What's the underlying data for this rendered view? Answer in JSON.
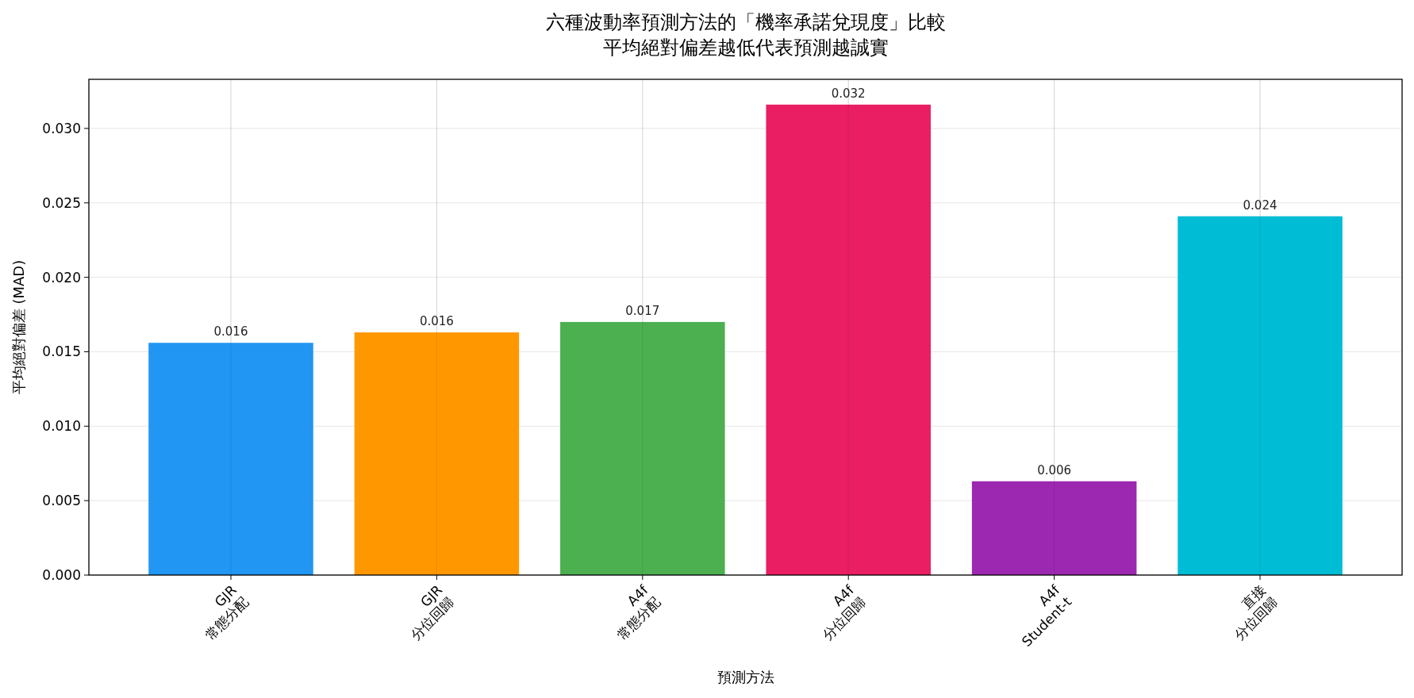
{
  "chart_data": {
    "type": "bar",
    "title": "六種波動率預測方法的「機率承諾兌現度」比較",
    "subtitle": "平均絕對偏差越低代表預測越誠實",
    "xlabel": "預測方法",
    "ylabel": "平均絕對偏差 (MAD)",
    "categories": [
      "GJR\n常態分配",
      "GJR\n分位回歸",
      "A4f\n常態分配",
      "A4f\n分位回歸",
      "A4f\nStudent-t",
      "直接\n分位回歸"
    ],
    "values": [
      0.0156,
      0.0163,
      0.017,
      0.0316,
      0.0063,
      0.0241
    ],
    "value_labels": [
      "0.016",
      "0.016",
      "0.017",
      "0.032",
      "0.006",
      "0.024"
    ],
    "colors": [
      "#2196f3",
      "#ff9800",
      "#4caf50",
      "#e91e63",
      "#9c27b0",
      "#00bcd4"
    ],
    "ylim": [
      0,
      0.0333
    ],
    "yticks": [
      {
        "value": 0,
        "label": "0.000"
      },
      {
        "value": 0.005,
        "label": "0.005"
      },
      {
        "value": 0.01,
        "label": "0.010"
      },
      {
        "value": 0.015,
        "label": "0.015"
      },
      {
        "value": 0.02,
        "label": "0.020"
      },
      {
        "value": 0.025,
        "label": "0.025"
      },
      {
        "value": 0.03,
        "label": "0.030"
      }
    ],
    "grid": true
  }
}
